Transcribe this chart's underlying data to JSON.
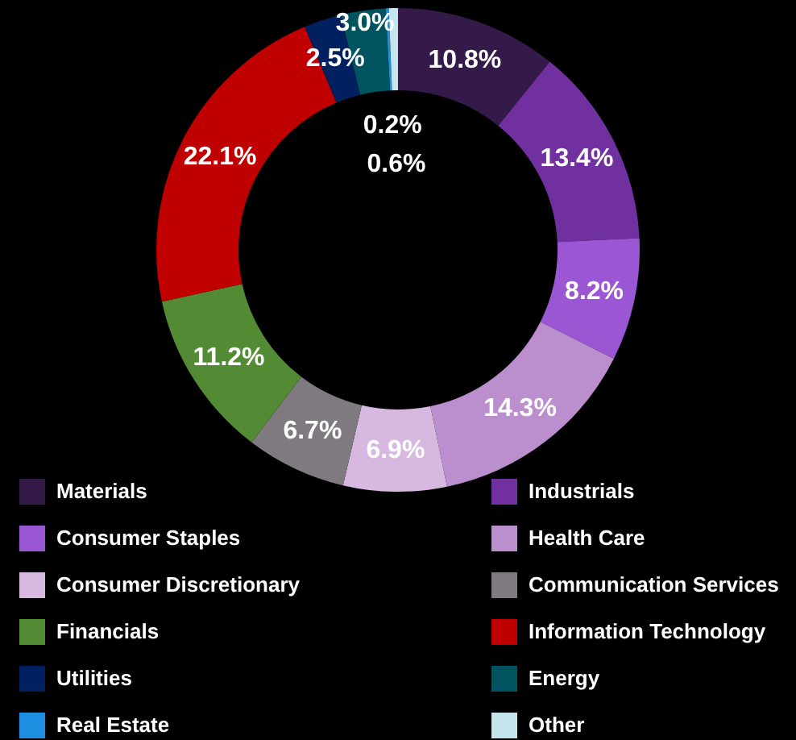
{
  "chart_data": {
    "type": "donut",
    "categories": [
      "Materials",
      "Industrials",
      "Consumer Staples",
      "Health Care",
      "Consumer Discretionary",
      "Communication Services",
      "Financials",
      "Information Technology",
      "Utilities",
      "Energy",
      "Real Estate",
      "Other"
    ],
    "values": [
      10.8,
      13.4,
      8.2,
      14.3,
      6.9,
      6.7,
      11.2,
      22.1,
      2.5,
      3.0,
      0.2,
      0.6
    ],
    "colors": [
      "#331a48",
      "#7030a0",
      "#9b57d3",
      "#bb8fce",
      "#d7b8e0",
      "#7f7a80",
      "#538b35",
      "#c00000",
      "#002060",
      "#00545f",
      "#1e8ee0",
      "#c5e5ec"
    ],
    "value_labels": [
      "10.8%",
      "13.4%",
      "8.2%",
      "14.3%",
      "6.9%",
      "6.7%",
      "11.2%",
      "22.1%",
      "2.5%",
      "3.0%",
      "0.2%",
      "0.6%"
    ],
    "data_labels": true,
    "legend": "bottom"
  }
}
